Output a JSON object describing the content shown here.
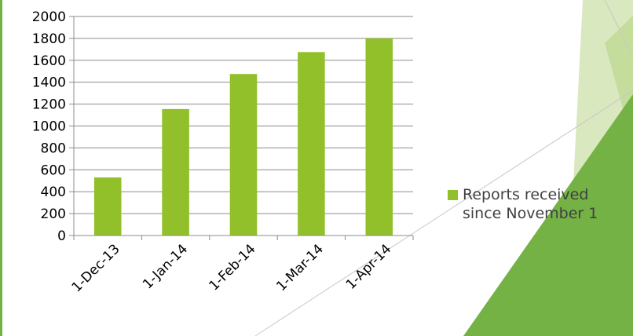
{
  "chart_data": {
    "type": "bar",
    "categories": [
      "1-Dec-13",
      "1-Jan-14",
      "1-Feb-14",
      "1-Mar-14",
      "1-Apr-14"
    ],
    "series": [
      {
        "name": "Reports received since November 1",
        "values": [
          530,
          1155,
          1475,
          1675,
          1800
        ]
      }
    ],
    "title": "",
    "xlabel": "",
    "ylabel": "",
    "ylim": [
      0,
      2000
    ],
    "yticks": [
      0,
      200,
      400,
      600,
      800,
      1000,
      1200,
      1400,
      1600,
      1800,
      2000
    ],
    "grid": true,
    "legend_position": "right",
    "bar_color": "#92c02a"
  },
  "legend": {
    "line1": "Reports received",
    "line2": "since November 1"
  },
  "colors": {
    "bar": "#92c02a",
    "grid": "#8c8c8c",
    "text": "#000000",
    "accent_dark": "#74b246",
    "accent_light": "#d9e8bf",
    "accent_mid": "#c4dd9d",
    "left_border": "#74b246"
  }
}
